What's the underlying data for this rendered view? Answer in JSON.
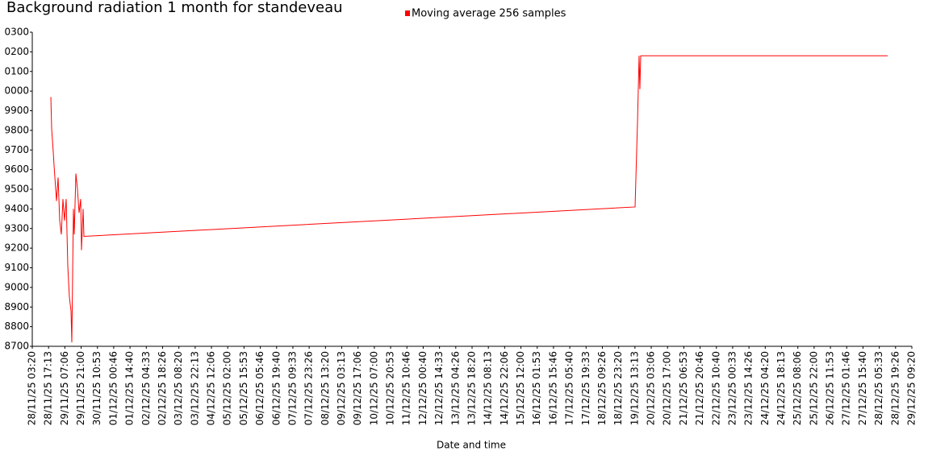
{
  "chart_data": {
    "type": "line",
    "title": "Background radiation 1 month for standeveau",
    "x_label": "Date and time",
    "x": [
      "28/11/25 19:10",
      "28/11/25 19:51",
      "28/11/25 21:13",
      "28/11/25 21:55",
      "28/11/25 23:58",
      "29/11/25 01:21",
      "29/11/25 02:43",
      "29/11/25 04:06",
      "29/11/25 05:29",
      "29/11/25 06:51",
      "29/11/25 08:14",
      "29/11/25 09:37",
      "29/11/25 10:18",
      "29/11/25 10:59",
      "29/11/25 12:22",
      "29/11/25 13:03",
      "29/11/25 14:25",
      "29/11/25 15:07",
      "29/11/25 16:30",
      "29/11/25 17:52",
      "29/11/25 19:15",
      "29/11/25 20:37",
      "29/11/25 21:18",
      "29/11/25 22:41",
      "29/11/25 23:22",
      "19/12/25 13:20",
      "19/12/25 14:02",
      "19/12/25 15:26",
      "19/12/25 16:44",
      "19/12/25 17:26",
      "19/12/25 18:08",
      "21/12/25 08:44",
      "24/12/25 05:32",
      "28/12/25 12:44"
    ],
    "series": [
      {
        "name": "Moving average 256 samples",
        "color": "#ff0000",
        "values": [
          9970,
          9810,
          9690,
          9620,
          9440,
          9560,
          9340,
          9270,
          9450,
          9340,
          9450,
          9110,
          9030,
          8950,
          8880,
          8720,
          9400,
          9270,
          9580,
          9500,
          9380,
          9450,
          9190,
          9400,
          9260,
          9410,
          9560,
          9850,
          10180,
          10010,
          10180,
          10180,
          10180,
          10180
        ]
      }
    ],
    "ylim": [
      8700,
      10300
    ],
    "yticks": [
      {
        "value": 10300,
        "label": "0300"
      },
      {
        "value": 10200,
        "label": "0200"
      },
      {
        "value": 10100,
        "label": "0100"
      },
      {
        "value": 10000,
        "label": "0000"
      },
      9900,
      9800,
      9700,
      9600,
      9500,
      9400,
      9300,
      9200,
      9100,
      9000,
      8900,
      8800,
      8700
    ],
    "xlim": [
      "28/11/25 03:20",
      "29/12/25 09:20"
    ],
    "xticks": [
      "28/11/25 03:20",
      "28/11/25 17:13",
      "29/11/25 07:06",
      "29/11/25 21:00",
      "30/11/25 10:53",
      "01/12/25 00:46",
      "01/12/25 14:40",
      "02/12/25 04:33",
      "02/12/25 18:26",
      "03/12/25 08:20",
      "03/12/25 22:13",
      "04/12/25 12:06",
      "05/12/25 02:00",
      "05/12/25 15:53",
      "06/12/25 05:46",
      "06/12/25 19:40",
      "07/12/25 09:33",
      "07/12/25 23:26",
      "08/12/25 13:20",
      "09/12/25 03:13",
      "09/12/25 17:06",
      "10/12/25 07:00",
      "10/12/25 20:53",
      "11/12/25 10:46",
      "12/12/25 00:40",
      "12/12/25 14:33",
      "13/12/25 04:26",
      "13/12/25 18:20",
      "14/12/25 08:13",
      "14/12/25 22:06",
      "15/12/25 12:00",
      "16/12/25 01:53",
      "16/12/25 15:46",
      "17/12/25 05:40",
      "17/12/25 19:33",
      "18/12/25 09:26",
      "18/12/25 23:20",
      "19/12/25 13:13",
      "20/12/25 03:06",
      "20/12/25 17:00",
      "21/12/25 06:53",
      "21/12/25 20:46",
      "22/12/25 10:40",
      "23/12/25 00:33",
      "23/12/25 14:26",
      "24/12/25 04:20",
      "24/12/25 18:13",
      "25/12/25 08:06",
      "25/12/25 22:00",
      "26/12/25 11:53",
      "27/12/25 01:46",
      "27/12/25 15:40",
      "28/12/25 05:33",
      "28/12/25 19:26",
      "29/12/25 09:20"
    ],
    "grid": false
  }
}
